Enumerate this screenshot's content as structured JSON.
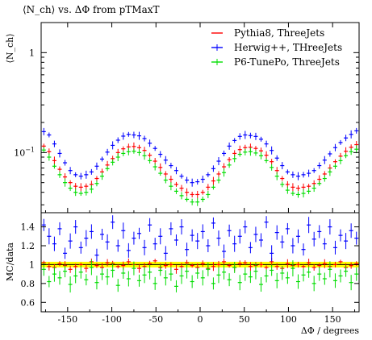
{
  "chart_data": {
    "type": "scatter",
    "title": "⟨N_ch⟩ vs. ΔΦ from pTMaxT",
    "top_panel": {
      "ylabel": "⟨N_ch⟩",
      "yscale": "log",
      "ylim": [
        0.025,
        2.0
      ],
      "yticks": [
        {
          "value": 1,
          "label": "1"
        },
        {
          "value": 0.1,
          "label": "10^−1"
        }
      ]
    },
    "ratio_panel": {
      "ylabel": "MC/data",
      "ylim": [
        0.5,
        1.55
      ],
      "yticks": [
        {
          "value": 0.6,
          "label": "0.6"
        },
        {
          "value": 0.8,
          "label": "0.8"
        },
        {
          "value": 1.0,
          "label": "1"
        },
        {
          "value": 1.2,
          "label": "1.2"
        },
        {
          "value": 1.4,
          "label": "1.4"
        }
      ],
      "band_color": "#ffff00",
      "band_halfwidth": 0.03
    },
    "xlabel": "ΔΦ / degrees",
    "xlim": [
      -180,
      180
    ],
    "xticks": [
      -150,
      -100,
      -50,
      0,
      50,
      100,
      150
    ],
    "x": [
      -177,
      -171,
      -165,
      -159,
      -153,
      -147,
      -141,
      -135,
      -129,
      -123,
      -117,
      -111,
      -105,
      -99,
      -93,
      -87,
      -81,
      -75,
      -69,
      -63,
      -57,
      -51,
      -45,
      -39,
      -33,
      -27,
      -21,
      -15,
      -9,
      -3,
      3,
      9,
      15,
      21,
      27,
      33,
      39,
      45,
      51,
      57,
      63,
      69,
      75,
      81,
      87,
      93,
      99,
      105,
      111,
      117,
      123,
      129,
      135,
      141,
      147,
      153,
      159,
      165,
      171,
      177
    ],
    "series": [
      {
        "name": "Pythia8, ThreeJets",
        "color": "#ff0000",
        "values": [
          0.116,
          0.102,
          0.083,
          0.068,
          0.057,
          0.05,
          0.046,
          0.045,
          0.046,
          0.048,
          0.055,
          0.064,
          0.075,
          0.087,
          0.1,
          0.109,
          0.114,
          0.115,
          0.112,
          0.105,
          0.094,
          0.082,
          0.071,
          0.061,
          0.054,
          0.048,
          0.044,
          0.04,
          0.038,
          0.038,
          0.04,
          0.045,
          0.052,
          0.061,
          0.072,
          0.085,
          0.098,
          0.107,
          0.112,
          0.113,
          0.11,
          0.104,
          0.094,
          0.081,
          0.066,
          0.055,
          0.048,
          0.045,
          0.044,
          0.045,
          0.046,
          0.049,
          0.054,
          0.061,
          0.07,
          0.081,
          0.092,
          0.103,
          0.113,
          0.12
        ],
        "ratio": [
          1.02,
          0.98,
          0.97,
          1.01,
          0.99,
          0.95,
          0.98,
          1.0,
          0.96,
          1.03,
          0.99,
          0.97,
          1.02,
          1.01,
          0.98,
          0.99,
          1.03,
          1.0,
          0.96,
          0.98,
          1.01,
          1.04,
          0.97,
          0.99,
          1.0,
          0.95,
          0.98,
          1.02,
          0.99,
          0.97,
          1.01,
          0.96,
          0.98,
          1.0,
          1.03,
          0.99,
          0.97,
          1.01,
          1.02,
          0.98,
          0.99,
          1.0,
          0.97,
          1.03,
          0.98,
          0.96,
          1.01,
          0.99,
          1.0,
          0.98,
          1.02,
          0.97,
          0.99,
          1.01,
          0.98,
          1.0,
          1.03,
          0.97,
          0.99,
          1.01
        ]
      },
      {
        "name": "Herwig++, THreeJets",
        "color": "#0000ff",
        "values": [
          0.162,
          0.15,
          0.122,
          0.098,
          0.079,
          0.066,
          0.06,
          0.058,
          0.06,
          0.064,
          0.073,
          0.086,
          0.101,
          0.118,
          0.133,
          0.146,
          0.152,
          0.15,
          0.147,
          0.138,
          0.124,
          0.11,
          0.096,
          0.084,
          0.074,
          0.066,
          0.058,
          0.053,
          0.05,
          0.051,
          0.054,
          0.06,
          0.069,
          0.082,
          0.098,
          0.116,
          0.132,
          0.145,
          0.15,
          0.148,
          0.145,
          0.136,
          0.122,
          0.105,
          0.088,
          0.074,
          0.064,
          0.06,
          0.058,
          0.06,
          0.062,
          0.066,
          0.074,
          0.084,
          0.097,
          0.112,
          0.126,
          0.14,
          0.152,
          0.165
        ],
        "ratio": [
          1.42,
          1.3,
          1.22,
          1.38,
          1.12,
          1.25,
          1.4,
          1.18,
          1.28,
          1.35,
          1.1,
          1.32,
          1.24,
          1.45,
          1.2,
          1.36,
          1.15,
          1.28,
          1.33,
          1.18,
          1.42,
          1.22,
          1.3,
          1.12,
          1.38,
          1.26,
          1.4,
          1.16,
          1.31,
          1.25,
          1.35,
          1.2,
          1.44,
          1.28,
          1.14,
          1.36,
          1.22,
          1.3,
          1.4,
          1.18,
          1.32,
          1.26,
          1.45,
          1.12,
          1.34,
          1.24,
          1.38,
          1.2,
          1.3,
          1.16,
          1.42,
          1.27,
          1.35,
          1.22,
          1.4,
          1.18,
          1.31,
          1.25,
          1.36,
          1.28
        ]
      },
      {
        "name": "P6-TunePo, ThreeJets",
        "color": "#00dd00",
        "values": [
          0.106,
          0.09,
          0.073,
          0.06,
          0.05,
          0.044,
          0.04,
          0.039,
          0.04,
          0.043,
          0.049,
          0.058,
          0.069,
          0.08,
          0.09,
          0.098,
          0.102,
          0.103,
          0.1,
          0.093,
          0.083,
          0.072,
          0.062,
          0.053,
          0.046,
          0.041,
          0.037,
          0.034,
          0.032,
          0.032,
          0.034,
          0.038,
          0.045,
          0.053,
          0.063,
          0.075,
          0.087,
          0.096,
          0.101,
          0.102,
          0.099,
          0.093,
          0.083,
          0.071,
          0.058,
          0.048,
          0.042,
          0.039,
          0.038,
          0.039,
          0.041,
          0.044,
          0.049,
          0.055,
          0.064,
          0.073,
          0.083,
          0.093,
          0.102,
          0.108
        ],
        "ratio": [
          0.95,
          0.82,
          0.9,
          0.86,
          0.93,
          0.79,
          0.88,
          0.92,
          0.84,
          0.97,
          0.81,
          0.9,
          0.87,
          0.94,
          0.78,
          0.91,
          0.85,
          0.96,
          0.83,
          0.89,
          0.92,
          0.8,
          0.94,
          0.86,
          0.9,
          0.77,
          0.88,
          0.93,
          0.82,
          0.91,
          0.86,
          0.95,
          0.8,
          0.89,
          0.92,
          0.84,
          0.97,
          0.81,
          0.9,
          0.87,
          0.93,
          0.79,
          0.88,
          0.94,
          0.83,
          0.91,
          0.86,
          0.96,
          0.82,
          0.89,
          0.92,
          0.8,
          0.9,
          0.85,
          0.95,
          0.83,
          0.88,
          0.93,
          0.81,
          0.9
        ]
      }
    ],
    "grid": false,
    "legend_position": "top-right"
  }
}
